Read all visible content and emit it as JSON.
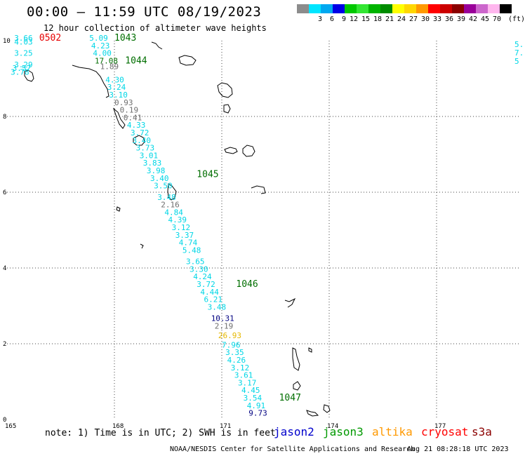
{
  "title": "00:00 – 11:59 UTC 08/19/2023",
  "subtitle": "12 hour collection of altimeter wave heights",
  "legend": {
    "unit": "(ft)",
    "bins": [
      {
        "label": "",
        "color": "#8c8c8c"
      },
      {
        "label": "3",
        "color": "#00e5ff"
      },
      {
        "label": "6",
        "color": "#00a8f0"
      },
      {
        "label": "9",
        "color": "#0000e6"
      },
      {
        "label": "12",
        "color": "#00c800"
      },
      {
        "label": "15",
        "color": "#33e633"
      },
      {
        "label": "18",
        "color": "#00b400"
      },
      {
        "label": "21",
        "color": "#008c00"
      },
      {
        "label": "24",
        "color": "#ffff00"
      },
      {
        "label": "27",
        "color": "#ffd700"
      },
      {
        "label": "30",
        "color": "#ff9900"
      },
      {
        "label": "33",
        "color": "#ff0000"
      },
      {
        "label": "36",
        "color": "#cc0000"
      },
      {
        "label": "39",
        "color": "#8b0000"
      },
      {
        "label": "42",
        "color": "#990099"
      },
      {
        "label": "45",
        "color": "#cc66cc"
      },
      {
        "label": "70",
        "color": "#ffb6ee"
      },
      {
        "label": "",
        "color": "#000000"
      }
    ]
  },
  "map": {
    "lon_range": [
      165,
      180
    ],
    "lat_range": [
      0,
      10
    ],
    "x_ticks": [
      "165",
      "168",
      "171",
      "174",
      "177"
    ],
    "y_ticks": [
      "0",
      "2",
      "4",
      "6",
      "8",
      "10"
    ]
  },
  "colors": {
    "cyan": "#00d6e6",
    "gray": "#6e6e6e",
    "navy": "#000080",
    "gold": "#e6b800",
    "green": "#006e00",
    "red": "#e60000"
  },
  "track_labels": [
    {
      "text": "3.66",
      "lon": 165.2,
      "lat": 10.0,
      "color": "cyan"
    },
    {
      "text": "4.03",
      "lon": 165.2,
      "lat": 9.9,
      "color": "cyan"
    },
    {
      "text": "3.25",
      "lon": 165.2,
      "lat": 9.6,
      "color": "cyan"
    },
    {
      "text": "3.29",
      "lon": 165.2,
      "lat": 9.3,
      "color": "cyan"
    },
    {
      "text": "3.57",
      "lon": 165.15,
      "lat": 9.2,
      "color": "cyan"
    },
    {
      "text": "3.78",
      "lon": 165.1,
      "lat": 9.1,
      "color": "cyan"
    },
    {
      "text": "5.09",
      "lon": 167.3,
      "lat": 10.0,
      "color": "cyan"
    },
    {
      "text": "4.23",
      "lon": 167.35,
      "lat": 9.8,
      "color": "cyan"
    },
    {
      "text": "4.00",
      "lon": 167.4,
      "lat": 9.6,
      "color": "cyan"
    },
    {
      "text": "17.08",
      "lon": 167.45,
      "lat": 9.4,
      "color": "green"
    },
    {
      "text": "1.89",
      "lon": 167.6,
      "lat": 9.25,
      "color": "gray"
    },
    {
      "text": "4.30",
      "lon": 167.75,
      "lat": 8.9,
      "color": "cyan"
    },
    {
      "text": "3.24",
      "lon": 167.8,
      "lat": 8.7,
      "color": "cyan"
    },
    {
      "text": "3.10",
      "lon": 167.85,
      "lat": 8.5,
      "color": "cyan"
    },
    {
      "text": "0.93",
      "lon": 168.0,
      "lat": 8.3,
      "color": "gray"
    },
    {
      "text": "0.19",
      "lon": 168.15,
      "lat": 8.1,
      "color": "gray"
    },
    {
      "text": "0.41",
      "lon": 168.25,
      "lat": 7.9,
      "color": "gray"
    },
    {
      "text": "4.33",
      "lon": 168.35,
      "lat": 7.7,
      "color": "cyan"
    },
    {
      "text": "3.72",
      "lon": 168.45,
      "lat": 7.5,
      "color": "cyan"
    },
    {
      "text": "3.40",
      "lon": 168.5,
      "lat": 7.3,
      "color": "cyan"
    },
    {
      "text": "3.73",
      "lon": 168.6,
      "lat": 7.1,
      "color": "cyan"
    },
    {
      "text": "3.01",
      "lon": 168.7,
      "lat": 6.9,
      "color": "cyan"
    },
    {
      "text": "3.83",
      "lon": 168.8,
      "lat": 6.7,
      "color": "cyan"
    },
    {
      "text": "3.98",
      "lon": 168.9,
      "lat": 6.5,
      "color": "cyan"
    },
    {
      "text": "3.40",
      "lon": 169.0,
      "lat": 6.3,
      "color": "cyan"
    },
    {
      "text": "3.50",
      "lon": 169.1,
      "lat": 6.1,
      "color": "cyan"
    },
    {
      "text": "3.48",
      "lon": 169.2,
      "lat": 5.8,
      "color": "cyan"
    },
    {
      "text": "2.16",
      "lon": 169.3,
      "lat": 5.6,
      "color": "gray"
    },
    {
      "text": "4.84",
      "lon": 169.4,
      "lat": 5.4,
      "color": "cyan"
    },
    {
      "text": "4.39",
      "lon": 169.5,
      "lat": 5.2,
      "color": "cyan"
    },
    {
      "text": "3.12",
      "lon": 169.6,
      "lat": 5.0,
      "color": "cyan"
    },
    {
      "text": "3.37",
      "lon": 169.7,
      "lat": 4.8,
      "color": "cyan"
    },
    {
      "text": "4.74",
      "lon": 169.8,
      "lat": 4.6,
      "color": "cyan"
    },
    {
      "text": "5.48",
      "lon": 169.9,
      "lat": 4.4,
      "color": "cyan"
    },
    {
      "text": "3.65",
      "lon": 170.0,
      "lat": 4.1,
      "color": "cyan"
    },
    {
      "text": "3.30",
      "lon": 170.1,
      "lat": 3.9,
      "color": "cyan"
    },
    {
      "text": "4.24",
      "lon": 170.2,
      "lat": 3.7,
      "color": "cyan"
    },
    {
      "text": "3.72",
      "lon": 170.3,
      "lat": 3.5,
      "color": "cyan"
    },
    {
      "text": "4.44",
      "lon": 170.4,
      "lat": 3.3,
      "color": "cyan"
    },
    {
      "text": "6.21",
      "lon": 170.5,
      "lat": 3.1,
      "color": "cyan"
    },
    {
      "text": "3.48",
      "lon": 170.6,
      "lat": 2.9,
      "color": "cyan"
    },
    {
      "text": "10.31",
      "lon": 170.7,
      "lat": 2.6,
      "color": "navy"
    },
    {
      "text": "2.19",
      "lon": 170.8,
      "lat": 2.4,
      "color": "gray"
    },
    {
      "text": "26.93",
      "lon": 170.9,
      "lat": 2.15,
      "color": "gold"
    },
    {
      "text": "7.96",
      "lon": 171.0,
      "lat": 1.9,
      "color": "cyan"
    },
    {
      "text": "3.35",
      "lon": 171.1,
      "lat": 1.7,
      "color": "cyan"
    },
    {
      "text": "4.26",
      "lon": 171.15,
      "lat": 1.5,
      "color": "cyan"
    },
    {
      "text": "3.12",
      "lon": 171.25,
      "lat": 1.3,
      "color": "cyan"
    },
    {
      "text": "3.61",
      "lon": 171.35,
      "lat": 1.1,
      "color": "cyan"
    },
    {
      "text": "3.17",
      "lon": 171.45,
      "lat": 0.9,
      "color": "cyan"
    },
    {
      "text": "4.45",
      "lon": 171.55,
      "lat": 0.7,
      "color": "cyan"
    },
    {
      "text": "3.54",
      "lon": 171.6,
      "lat": 0.5,
      "color": "cyan"
    },
    {
      "text": "4.91",
      "lon": 171.7,
      "lat": 0.3,
      "color": "cyan"
    },
    {
      "text": "9.73",
      "lon": 171.75,
      "lat": 0.1,
      "color": "navy"
    }
  ],
  "time_labels": [
    {
      "text": "0502",
      "lon": 165.9,
      "lat": 10.0,
      "color": "red"
    },
    {
      "text": "1043",
      "lon": 168.0,
      "lat": 10.0,
      "color": "green"
    },
    {
      "text": "1044",
      "lon": 168.3,
      "lat": 9.4,
      "color": "green"
    },
    {
      "text": "1045",
      "lon": 170.3,
      "lat": 6.4,
      "color": "green"
    },
    {
      "text": "1046",
      "lon": 171.4,
      "lat": 3.5,
      "color": "green"
    },
    {
      "text": "1047",
      "lon": 172.6,
      "lat": 0.5,
      "color": "green"
    }
  ],
  "edge_labels": [
    "5.",
    "7.",
    "5"
  ],
  "note": "note: 1) Time is in UTC; 2) SWH is in feet",
  "satellites": [
    {
      "name": "jason2",
      "color": "#0000cc"
    },
    {
      "name": "jason3",
      "color": "#009900"
    },
    {
      "name": "altika",
      "color": "#ff9900"
    },
    {
      "name": "cryosat",
      "color": "#ff0000"
    },
    {
      "name": "s3a",
      "color": "#8b0000"
    }
  ],
  "footer_credit": "NOAA/NESDIS Center for Satellite Applications and Research",
  "footer_time": "Aug 21 08:28:18 UTC 2023"
}
